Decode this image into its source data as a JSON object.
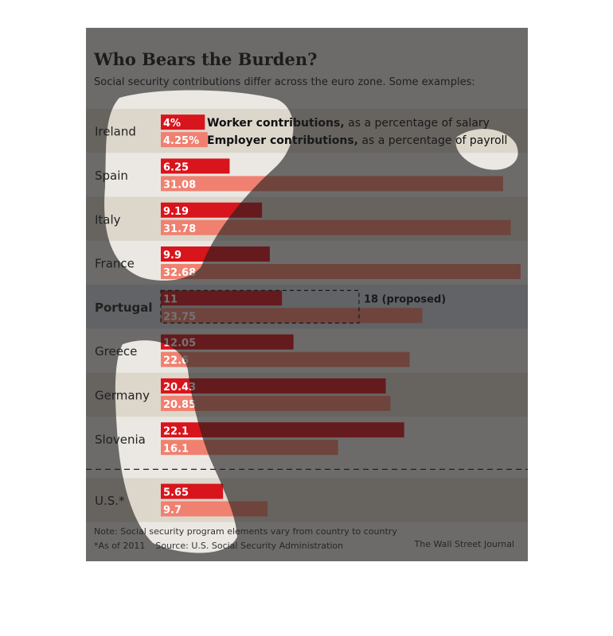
{
  "title": "Who Bears the Burden?",
  "subtitle": "Social security contributions differ across the euro zone.  Some examples:",
  "legend": {
    "worker": {
      "bold": "Worker contributions,",
      "rest": " as a percentage of salary"
    },
    "employer": {
      "bold": "Employer contributions,",
      "rest": " as a percentage of payroll"
    }
  },
  "colors": {
    "worker": "#d8141c",
    "employer": "#f08070",
    "stripe": "#ddd6cb",
    "highlight": "#cdd2d9",
    "dim_overlay": "rgba(30,30,30,0.62)"
  },
  "chart_data": {
    "type": "bar",
    "orientation": "horizontal",
    "categories": [
      "Ireland",
      "Spain",
      "Italy",
      "France",
      "Portugal",
      "Greece",
      "Germany",
      "Slovenia",
      "U.S.*"
    ],
    "highlighted_category": "Portugal",
    "series": [
      {
        "name": "Worker contributions",
        "labels": [
          "4%",
          "6.25",
          "9.19",
          "9.9",
          "11",
          "12.05",
          "20.43",
          "22.1",
          "5.65"
        ],
        "values": [
          4,
          6.25,
          9.19,
          9.9,
          11,
          12.05,
          20.43,
          22.1,
          5.65
        ]
      },
      {
        "name": "Employer contributions",
        "labels": [
          "4.25%",
          "31.08",
          "31.78",
          "32.68",
          "23.75",
          "22.6",
          "20.85",
          "16.1",
          "9.7"
        ],
        "values": [
          4.25,
          31.08,
          31.78,
          32.68,
          23.75,
          22.6,
          20.85,
          16.1,
          9.7
        ]
      }
    ],
    "annotation": {
      "category": "Portugal",
      "series": "Worker contributions",
      "value": 18,
      "label": "18 (proposed)"
    },
    "xlim": [
      0,
      32.68
    ]
  },
  "footer": {
    "note": "Note: Social security program elements vary from country to country",
    "as_of": "*As of 2011",
    "source": "Source: U.S. Social Security Administration",
    "brand": "The Wall Street Journal"
  }
}
